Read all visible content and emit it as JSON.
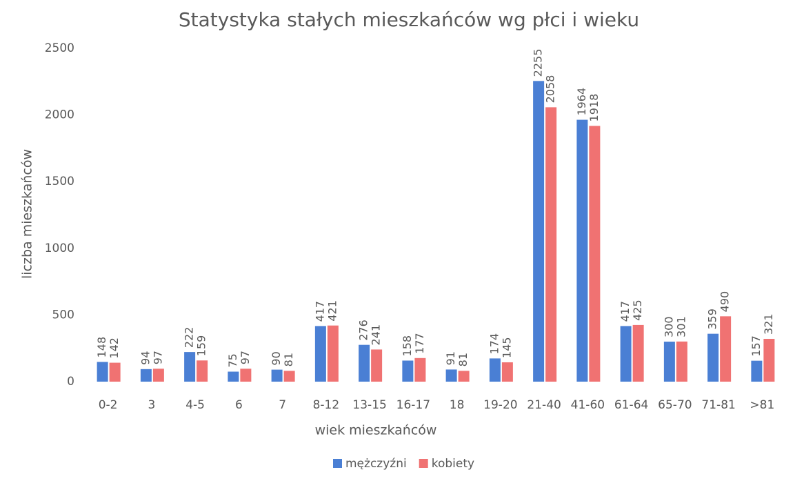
{
  "chart_data": {
    "type": "bar",
    "title": "Statystyka stałych mieszkańców wg płci i wieku",
    "x_label": "wiek mieszkańców",
    "y_label": "liczba mieszkańców",
    "categories": [
      "0-2",
      "3",
      "4-5",
      "6",
      "7",
      "8-12",
      "13-15",
      "16-17",
      "18",
      "19-20",
      "21-40",
      "41-60",
      "61-64",
      "65-70",
      "71-81",
      ">81"
    ],
    "series": [
      {
        "name": "mężczyźni",
        "color": "#4a7fd4",
        "values": [
          148,
          94,
          222,
          75,
          90,
          417,
          276,
          158,
          91,
          174,
          2255,
          1964,
          417,
          300,
          359,
          157
        ]
      },
      {
        "name": "kobiety",
        "color": "#f07272",
        "values": [
          142,
          97,
          159,
          97,
          81,
          421,
          241,
          177,
          81,
          145,
          2058,
          1918,
          425,
          301,
          490,
          321
        ]
      }
    ],
    "ylim": [
      0,
      2500
    ],
    "yticks": [
      0,
      500,
      1000,
      1500,
      2000,
      2500
    ],
    "grid": false,
    "legend": "bottom"
  }
}
